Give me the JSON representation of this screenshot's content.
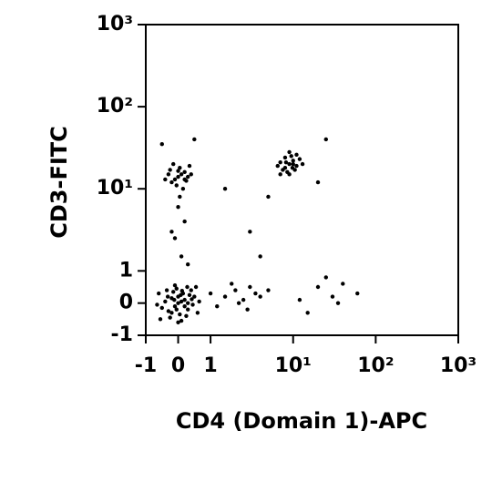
{
  "chart_data": {
    "type": "scatter",
    "x_label": "CD4 (Domain 1)-APC",
    "y_label": "CD3-FITC",
    "scale": "biexponential",
    "color": "#000000",
    "xlim": [
      -1,
      1000
    ],
    "ylim": [
      -1,
      1000
    ],
    "xticks": [
      -1,
      0,
      1,
      {
        "value": 10,
        "label": "10¹"
      },
      {
        "value": 100,
        "label": "10²"
      },
      {
        "value": 1000,
        "label": "10³"
      }
    ],
    "yticks": [
      -1,
      0,
      1,
      {
        "value": 10,
        "label": "10¹"
      },
      {
        "value": 100,
        "label": "10²"
      },
      {
        "value": 1000,
        "label": "10³"
      }
    ],
    "x": [
      0,
      0.1,
      -0.1,
      0.2,
      -0.2,
      0.3,
      -0.3,
      0.15,
      -0.15,
      0.35,
      -0.4,
      0.45,
      0.05,
      -0.05,
      0.25,
      -0.25,
      0.5,
      -0.5,
      0.4,
      -0.35,
      0.6,
      -0.6,
      0.1,
      -0.1,
      0.55,
      -0.55,
      0,
      0.2,
      -0.2,
      0.3,
      -0.05,
      0.12,
      -0.32,
      0.42,
      0.65,
      -0.65,
      0,
      0.28,
      -0.12,
      0.08,
      0,
      0.1,
      -0.1,
      0.2,
      -0.2,
      0.3,
      -0.3,
      0.05,
      -0.05,
      0.25,
      -0.25,
      0.4,
      -0.4,
      0.15,
      -0.15,
      0.35,
      0,
      0.2,
      9,
      10,
      8,
      11,
      7,
      9.5,
      8.5,
      12,
      7.5,
      10.5,
      9,
      8,
      11,
      6.5,
      13,
      9,
      10,
      8.2,
      9.8,
      7,
      0.1,
      -0.1,
      0.2,
      0,
      -0.2,
      0.3,
      0.05,
      1.5,
      2,
      2.5,
      3,
      1.2,
      3.5,
      4,
      1.8,
      2.8,
      5,
      1,
      2.2,
      20,
      30,
      15,
      40,
      60,
      25,
      12,
      3,
      5,
      20,
      25,
      1.5,
      -0.5,
      0.5,
      4,
      35
    ],
    "y": [
      0,
      0.05,
      -0.1,
      0.1,
      0.15,
      -0.2,
      -0.25,
      0.3,
      0.35,
      0.25,
      0.05,
      -0.05,
      -0.35,
      0.45,
      -0.4,
      -0.45,
      0.2,
      -0.15,
      0.4,
      0.4,
      -0.3,
      0.3,
      -0.55,
      0.55,
      0.5,
      -0.5,
      0.2,
      -0.1,
      -0.3,
      0,
      -0.2,
      0.38,
      0.2,
      0.12,
      0.05,
      -0.05,
      -0.6,
      0.5,
      0.1,
      0.25,
      14,
      15,
      13,
      16,
      12,
      14,
      15,
      18,
      11,
      12.5,
      17,
      15,
      13,
      10,
      20,
      19,
      16.5,
      13,
      20,
      22,
      18,
      19,
      21,
      25,
      16,
      23,
      17,
      17,
      28,
      24,
      26,
      19,
      20,
      15,
      20,
      21,
      18,
      15,
      1.5,
      2.5,
      4,
      6,
      3,
      1.2,
      8,
      0.2,
      0.4,
      0.1,
      0.5,
      -0.1,
      0.3,
      0.2,
      0.6,
      -0.2,
      0.4,
      0.3,
      0,
      0.5,
      0.2,
      -0.3,
      0.6,
      0.3,
      0.8,
      0.1,
      3,
      8,
      12,
      40,
      10,
      35,
      40,
      1.5,
      0
    ]
  }
}
